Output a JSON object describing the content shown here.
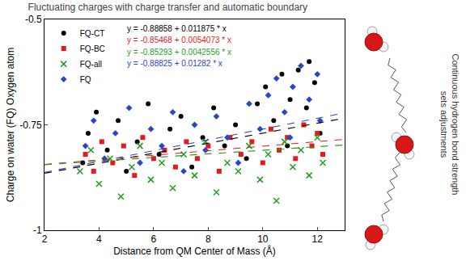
{
  "chart_data": {
    "type": "scatter",
    "title": "Fluctuating charges with charge transfer and automatic boundary",
    "side_text": "Continuous hydrogen bond strength sets adjustments",
    "x_label": "Distance from QM Center of Mass (Å)",
    "y_label": "Charge on water (FQ) Oxygen atom",
    "xlim": [
      2,
      13
    ],
    "xticks": [
      2,
      4,
      6,
      8,
      10,
      12
    ],
    "ylim": [
      -1,
      -0.5
    ],
    "yticks": [
      -1,
      -0.75,
      -0.5
    ],
    "grid": false,
    "legend": "top-left",
    "series": [
      {
        "name": "FQ-CT",
        "color": "#000000",
        "marker": "circle",
        "fit": {
          "intercept": -0.88858,
          "slope": 0.011875
        },
        "equation": "y = -0.88858 + 0.011875 * x",
        "x": [
          3.4,
          3.6,
          3.9,
          4.3,
          4.7,
          5.0,
          5.4,
          5.8,
          6.2,
          6.6,
          7.0,
          7.4,
          7.8,
          8.2,
          8.6,
          9.0,
          9.4,
          9.8,
          10.1,
          10.4,
          10.7,
          11.0,
          11.3,
          11.6,
          11.9,
          12.1,
          10.9,
          11.7
        ],
        "values": [
          -0.84,
          -0.77,
          -0.72,
          -0.81,
          -0.74,
          -0.86,
          -0.79,
          -0.7,
          -0.82,
          -0.76,
          -0.73,
          -0.85,
          -0.78,
          -0.71,
          -0.8,
          -0.75,
          -0.83,
          -0.7,
          -0.66,
          -0.74,
          -0.63,
          -0.69,
          -0.62,
          -0.71,
          -0.65,
          -0.77,
          -0.8,
          -0.6
        ]
      },
      {
        "name": "FQ-BC",
        "color": "#e41a1c",
        "marker": "square",
        "fit": {
          "intercept": -0.85468,
          "slope": 0.0054073
        },
        "equation": "y = -0.85468 + 0.0054073 * x",
        "x": [
          3.5,
          3.8,
          4.1,
          4.5,
          4.9,
          5.3,
          5.6,
          6.0,
          6.4,
          6.8,
          7.2,
          7.6,
          8.0,
          8.4,
          8.8,
          9.2,
          9.6,
          10.0,
          10.3,
          10.6,
          10.9,
          11.2,
          11.5,
          11.8,
          12.0,
          12.2
        ],
        "values": [
          -0.82,
          -0.86,
          -0.79,
          -0.84,
          -0.8,
          -0.87,
          -0.78,
          -0.83,
          -0.81,
          -0.85,
          -0.79,
          -0.83,
          -0.8,
          -0.86,
          -0.78,
          -0.82,
          -0.79,
          -0.84,
          -0.76,
          -0.81,
          -0.78,
          -0.83,
          -0.75,
          -0.8,
          -0.77,
          -0.82
        ]
      },
      {
        "name": "FQ-all",
        "color": "#1f9e1f",
        "marker": "x",
        "fit": {
          "intercept": -0.85293,
          "slope": 0.0042556
        },
        "equation": "y = -0.85293 + 0.0042556 * x",
        "x": [
          3.3,
          3.7,
          4.0,
          4.4,
          4.8,
          5.2,
          5.5,
          5.9,
          6.3,
          6.7,
          7.1,
          7.5,
          7.9,
          8.3,
          8.7,
          9.1,
          9.5,
          9.9,
          10.2,
          10.5,
          10.8,
          11.1,
          11.4,
          11.7,
          12.0,
          12.2
        ],
        "values": [
          -0.86,
          -0.81,
          -0.89,
          -0.83,
          -0.92,
          -0.85,
          -0.8,
          -0.88,
          -0.84,
          -0.9,
          -0.82,
          -0.87,
          -0.79,
          -0.91,
          -0.84,
          -0.86,
          -0.8,
          -0.88,
          -0.82,
          -0.93,
          -0.79,
          -0.85,
          -0.81,
          -0.87,
          -0.78,
          -0.84
        ]
      },
      {
        "name": "FQ",
        "color": "#2a46c8",
        "marker": "diamond",
        "fit": {
          "intercept": -0.88825,
          "slope": 0.01282
        },
        "equation": "y = -0.88825 + 0.01282 * x",
        "x": [
          3.5,
          3.8,
          4.2,
          4.6,
          5.1,
          5.5,
          5.9,
          6.3,
          6.7,
          7.1,
          7.5,
          7.9,
          8.3,
          8.7,
          9.1,
          9.5,
          9.9,
          10.2,
          10.5,
          10.8,
          11.1,
          11.4,
          11.7,
          12.0,
          12.1,
          11.0
        ],
        "values": [
          -0.8,
          -0.74,
          -0.83,
          -0.77,
          -0.71,
          -0.84,
          -0.76,
          -0.8,
          -0.72,
          -0.86,
          -0.75,
          -0.81,
          -0.73,
          -0.78,
          -0.84,
          -0.7,
          -0.76,
          -0.68,
          -0.64,
          -0.72,
          -0.66,
          -0.61,
          -0.69,
          -0.63,
          -0.74,
          -0.78
        ]
      }
    ]
  }
}
